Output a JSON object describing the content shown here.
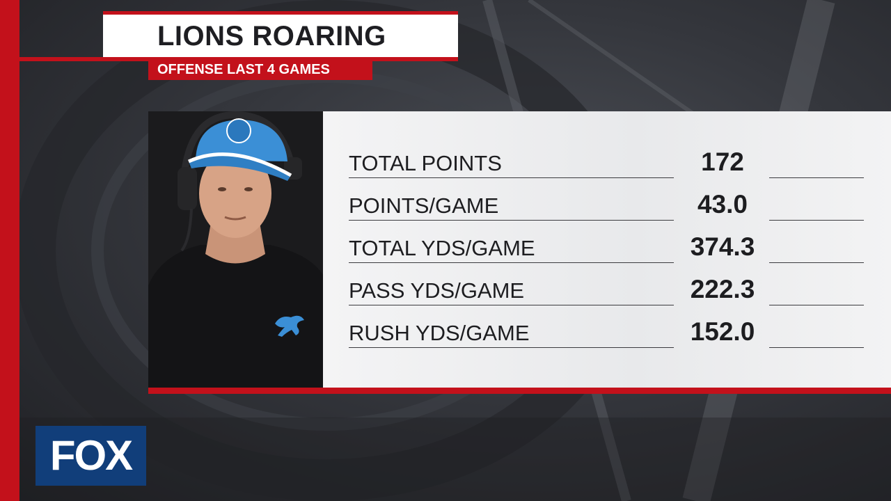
{
  "graphic": {
    "title": "LIONS ROARING",
    "subtitle": "OFFENSE LAST 4 GAMES"
  },
  "stats": [
    {
      "label": "TOTAL POINTS",
      "value": "172"
    },
    {
      "label": "POINTS/GAME",
      "value": "43.0"
    },
    {
      "label": "TOTAL YDS/GAME",
      "value": "374.3"
    },
    {
      "label": "PASS YDS/GAME",
      "value": "222.3"
    },
    {
      "label": "RUSH YDS/GAME",
      "value": "152.0"
    }
  ],
  "photo": {
    "subject": "coach-portrait"
  },
  "logo": {
    "text": "FOX"
  },
  "colors": {
    "accent_red": "#c3111b",
    "fox_blue": "#113e7a",
    "lions_blue": "#3b8fd6"
  }
}
